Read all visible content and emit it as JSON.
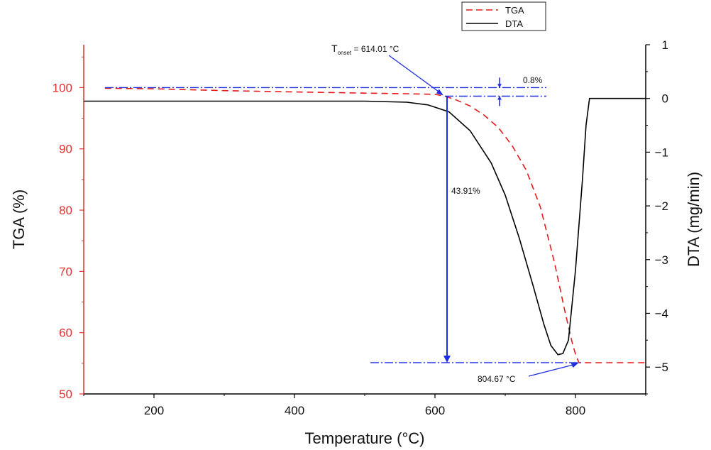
{
  "chart_data": {
    "type": "line",
    "xlabel": "Temperature (°C)",
    "ylabel_left": "TGA (%)",
    "ylabel_right": "DTA (mg/min)",
    "xlim": [
      100,
      900
    ],
    "ylim_left": [
      50,
      107
    ],
    "ylim_right": [
      -5.5,
      1
    ],
    "x_ticks": [
      200,
      400,
      600,
      800
    ],
    "y_left_ticks": [
      50,
      60,
      70,
      80,
      90,
      100
    ],
    "y_right_ticks": [
      1,
      0,
      -1,
      -2,
      -3,
      -4,
      -5
    ],
    "legend": {
      "position": "top-right",
      "entries": [
        "TGA",
        "DTA"
      ]
    },
    "colors": {
      "tga": "#e41a1c",
      "dta": "#000000",
      "annotation": "#1f2de0",
      "left_axis": "#e03030"
    },
    "series": [
      {
        "name": "TGA",
        "axis": "left",
        "style": "dashed",
        "x": [
          130,
          200,
          300,
          400,
          500,
          560,
          600,
          614,
          630,
          650,
          670,
          690,
          710,
          730,
          750,
          770,
          785,
          795,
          800,
          805,
          900
        ],
        "y": [
          99.9,
          99.8,
          99.5,
          99.3,
          99.1,
          99.0,
          98.9,
          98.6,
          98.0,
          97.0,
          95.5,
          93.5,
          90.5,
          86.5,
          80.5,
          71.5,
          63.5,
          58.5,
          56.5,
          55.1,
          55.1
        ]
      },
      {
        "name": "DTA",
        "axis": "right",
        "style": "solid",
        "x": [
          100,
          300,
          500,
          560,
          590,
          620,
          650,
          680,
          700,
          720,
          740,
          755,
          765,
          775,
          782,
          790,
          800,
          810,
          815,
          820,
          900
        ],
        "y": [
          -0.05,
          -0.05,
          -0.05,
          -0.07,
          -0.12,
          -0.25,
          -0.6,
          -1.2,
          -1.8,
          -2.6,
          -3.5,
          -4.2,
          -4.6,
          -4.77,
          -4.75,
          -4.5,
          -3.2,
          -1.5,
          -0.5,
          0.0,
          0.0
        ]
      }
    ],
    "annotations": {
      "onset_label": "614.01 °C",
      "onset_prefix": "T",
      "onset_subscript": "onset",
      "end_label": "804.67 °C",
      "loss_small": "0.8%",
      "loss_large": "43.91%",
      "onset_x": 614.01,
      "end_x": 804.67,
      "ref_top": 100,
      "ref_mid": 98.6,
      "ref_bottom": 55.1
    }
  }
}
